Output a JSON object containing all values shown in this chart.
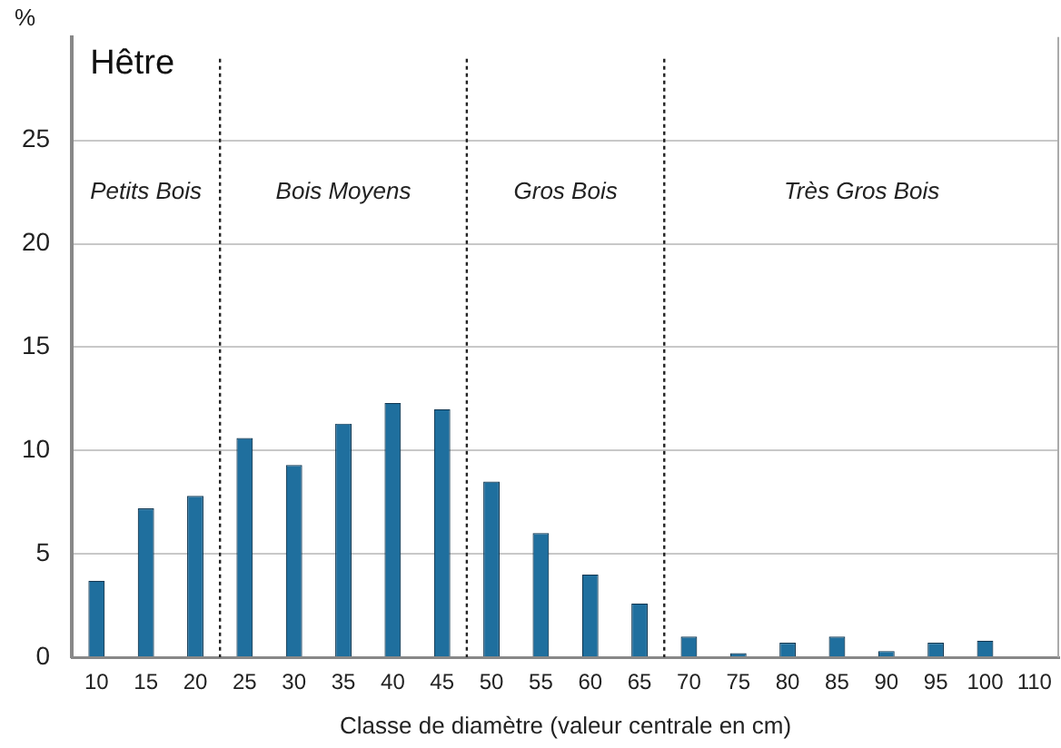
{
  "chart_data": {
    "type": "bar",
    "title": "Hêtre",
    "ylabel": "%",
    "xlabel": "Classe de diamètre (valeur centrale en cm)",
    "categories": [
      "10",
      "15",
      "20",
      "25",
      "30",
      "35",
      "40",
      "45",
      "50",
      "55",
      "60",
      "65",
      "70",
      "75",
      "80",
      "85",
      "90",
      "95",
      "100",
      "110"
    ],
    "values": [
      3.7,
      7.2,
      7.8,
      10.6,
      9.3,
      11.3,
      12.3,
      12.0,
      8.5,
      6.0,
      4.0,
      2.6,
      1.0,
      0.2,
      0.7,
      1.0,
      0.3,
      0.7,
      0.8,
      null
    ],
    "color": "#1f6f9e",
    "ylim": [
      0,
      30
    ],
    "yticks": [
      0,
      5,
      10,
      15,
      20,
      25
    ],
    "grid": "y",
    "annotations": [
      "Petits Bois",
      "Bois Moyens",
      "Gros Bois",
      "Très Gros Bois"
    ]
  }
}
